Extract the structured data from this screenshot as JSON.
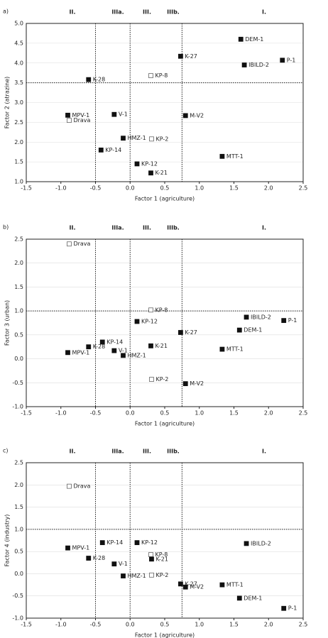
{
  "chart_data": [
    {
      "type": "scatter",
      "panel": "a)",
      "regions": [
        "II.",
        "IIIa.",
        "III.",
        "IIIb.",
        "I."
      ],
      "xlabel": "Factor 1 (agriculture)",
      "ylabel": "Factor 2 (atrazine)",
      "xlim": [
        -1.5,
        2.5
      ],
      "ylim": [
        1.0,
        5.0
      ],
      "xticks": [
        -1.5,
        {
          "value": -1,
          "label": "-1.0"
        },
        -0.5,
        {
          "value": 0,
          "label": "0.0"
        },
        0.5,
        {
          "value": 1,
          "label": "1.0"
        },
        1.5,
        {
          "value": 2,
          "label": "2.0"
        },
        2.5
      ],
      "yticks": [
        {
          "value": 1,
          "label": "1.0"
        },
        1.5,
        {
          "value": 2,
          "label": "2.0"
        },
        2.5,
        {
          "value": 3,
          "label": "3.0"
        },
        3.5,
        {
          "value": 4,
          "label": "4.0"
        },
        4.5,
        {
          "value": 5,
          "label": "5.0"
        }
      ],
      "vlines": [
        -0.5,
        0,
        0.75
      ],
      "hline": 3.5,
      "points": [
        {
          "label": "DEM-1",
          "x": 1.6,
          "y": 4.6,
          "hollow": false
        },
        {
          "label": "P-1",
          "x": 2.2,
          "y": 4.07,
          "hollow": false
        },
        {
          "label": "IBILD-2",
          "x": 1.65,
          "y": 3.95,
          "hollow": false
        },
        {
          "label": "K-27",
          "x": 0.73,
          "y": 4.17,
          "hollow": false
        },
        {
          "label": "K-28",
          "x": -0.6,
          "y": 3.58,
          "hollow": false
        },
        {
          "label": "KP-8",
          "x": 0.3,
          "y": 3.68,
          "hollow": true
        },
        {
          "label": "MPV-1",
          "x": -0.9,
          "y": 2.68,
          "hollow": false
        },
        {
          "label": "Drava",
          "x": -0.88,
          "y": 2.55,
          "hollow": true
        },
        {
          "label": "V-1",
          "x": -0.23,
          "y": 2.7,
          "hollow": false
        },
        {
          "label": "M-V2",
          "x": 0.8,
          "y": 2.67,
          "hollow": false
        },
        {
          "label": "HMZ-1",
          "x": -0.1,
          "y": 2.1,
          "hollow": false
        },
        {
          "label": "KP-2",
          "x": 0.31,
          "y": 2.08,
          "hollow": true
        },
        {
          "label": "KP-14",
          "x": -0.42,
          "y": 1.8,
          "hollow": false
        },
        {
          "label": "KP-12",
          "x": 0.1,
          "y": 1.45,
          "hollow": false
        },
        {
          "label": "K-21",
          "x": 0.3,
          "y": 1.22,
          "hollow": false
        },
        {
          "label": "MTT-1",
          "x": 1.33,
          "y": 1.64,
          "hollow": false
        }
      ]
    },
    {
      "type": "scatter",
      "panel": "b)",
      "regions": [
        "II.",
        "IIIa.",
        "III.",
        "IIIb.",
        "I."
      ],
      "xlabel": "Factor 1 (agriculture)",
      "ylabel": "Factor 3 (urban)",
      "xlim": [
        -1.5,
        2.5
      ],
      "ylim": [
        -1.0,
        2.5
      ],
      "xticks": [
        -1.5,
        {
          "value": -1,
          "label": "-1.0"
        },
        -0.5,
        {
          "value": 0,
          "label": "0.0"
        },
        0.5,
        {
          "value": 1,
          "label": "1.0"
        },
        1.5,
        {
          "value": 2,
          "label": "2.0"
        },
        2.5
      ],
      "yticks": [
        {
          "value": -1,
          "label": "-1.0"
        },
        -0.5,
        {
          "value": 0,
          "label": "0.0"
        },
        0.5,
        {
          "value": 1,
          "label": "1.0"
        },
        1.5,
        {
          "value": 2,
          "label": "2.0"
        },
        2.5
      ],
      "vlines": [
        -0.5,
        0,
        0.75
      ],
      "hline": 1,
      "points": [
        {
          "label": "Drava",
          "x": -0.88,
          "y": 2.4,
          "hollow": true
        },
        {
          "label": "KP-8",
          "x": 0.3,
          "y": 1.02,
          "hollow": true
        },
        {
          "label": "IBILD-2",
          "x": 1.68,
          "y": 0.87,
          "hollow": false
        },
        {
          "label": "P-1",
          "x": 2.22,
          "y": 0.8,
          "hollow": false
        },
        {
          "label": "KP-12",
          "x": 0.1,
          "y": 0.78,
          "hollow": false
        },
        {
          "label": "K-27",
          "x": 0.73,
          "y": 0.55,
          "hollow": false
        },
        {
          "label": "DEM-1",
          "x": 1.58,
          "y": 0.6,
          "hollow": false
        },
        {
          "label": "KP-14",
          "x": -0.4,
          "y": 0.35,
          "hollow": false
        },
        {
          "label": "K-21",
          "x": 0.3,
          "y": 0.27,
          "hollow": false
        },
        {
          "label": "MTT-1",
          "x": 1.33,
          "y": 0.2,
          "hollow": false
        },
        {
          "label": "V-1",
          "x": -0.23,
          "y": 0.17,
          "hollow": false
        },
        {
          "label": "MPV-1",
          "x": -0.9,
          "y": 0.13,
          "hollow": false
        },
        {
          "label": "K-28",
          "x": -0.6,
          "y": 0.25,
          "hollow": false
        },
        {
          "label": "HMZ-1",
          "x": -0.1,
          "y": 0.07,
          "hollow": false
        },
        {
          "label": "KP-2",
          "x": 0.31,
          "y": -0.43,
          "hollow": true
        },
        {
          "label": "M-V2",
          "x": 0.8,
          "y": -0.52,
          "hollow": false
        }
      ]
    },
    {
      "type": "scatter",
      "panel": "c)",
      "regions": [
        "II.",
        "IIIa.",
        "III.",
        "IIIb.",
        "I."
      ],
      "xlabel": "Factor 1 (agriculture)",
      "ylabel": "Factor 4 (industry)",
      "xlim": [
        -1.5,
        2.5
      ],
      "ylim": [
        -1.0,
        2.5
      ],
      "xticks": [
        -1.5,
        {
          "value": -1,
          "label": "-1.0"
        },
        -0.5,
        {
          "value": 0,
          "label": "0.0"
        },
        0.5,
        {
          "value": 1,
          "label": "1.0"
        },
        1.5,
        {
          "value": 2,
          "label": "2.0"
        },
        2.5
      ],
      "yticks": [
        {
          "value": -1,
          "label": "-1.0"
        },
        -0.5,
        {
          "value": 0,
          "label": "0.0"
        },
        0.5,
        {
          "value": 1,
          "label": "1.0"
        },
        1.5,
        {
          "value": 2,
          "label": "2.0"
        },
        2.5
      ],
      "vlines": [
        -0.5,
        0,
        0.75
      ],
      "hline": 1,
      "points": [
        {
          "label": "Drava",
          "x": -0.88,
          "y": 1.97,
          "hollow": true
        },
        {
          "label": "MPV-1",
          "x": -0.9,
          "y": 0.58,
          "hollow": false
        },
        {
          "label": "KP-14",
          "x": -0.4,
          "y": 0.7,
          "hollow": false
        },
        {
          "label": "KP-12",
          "x": 0.1,
          "y": 0.7,
          "hollow": false
        },
        {
          "label": "IBILD-2",
          "x": 1.68,
          "y": 0.68,
          "hollow": false
        },
        {
          "label": "KP-8",
          "x": 0.3,
          "y": 0.43,
          "hollow": true
        },
        {
          "label": "K-28",
          "x": -0.6,
          "y": 0.35,
          "hollow": false
        },
        {
          "label": "K-21",
          "x": 0.31,
          "y": 0.33,
          "hollow": false
        },
        {
          "label": "V-1",
          "x": -0.23,
          "y": 0.22,
          "hollow": false
        },
        {
          "label": "HMZ-1",
          "x": -0.1,
          "y": -0.05,
          "hollow": false
        },
        {
          "label": "KP-2",
          "x": 0.31,
          "y": -0.03,
          "hollow": true
        },
        {
          "label": "K-27",
          "x": 0.73,
          "y": -0.23,
          "hollow": false
        },
        {
          "label": "M-V2",
          "x": 0.8,
          "y": -0.3,
          "hollow": false
        },
        {
          "label": "MTT-1",
          "x": 1.33,
          "y": -0.25,
          "hollow": false
        },
        {
          "label": "DEM-1",
          "x": 1.58,
          "y": -0.55,
          "hollow": false
        },
        {
          "label": "P-1",
          "x": 2.22,
          "y": -0.78,
          "hollow": false
        }
      ]
    }
  ]
}
